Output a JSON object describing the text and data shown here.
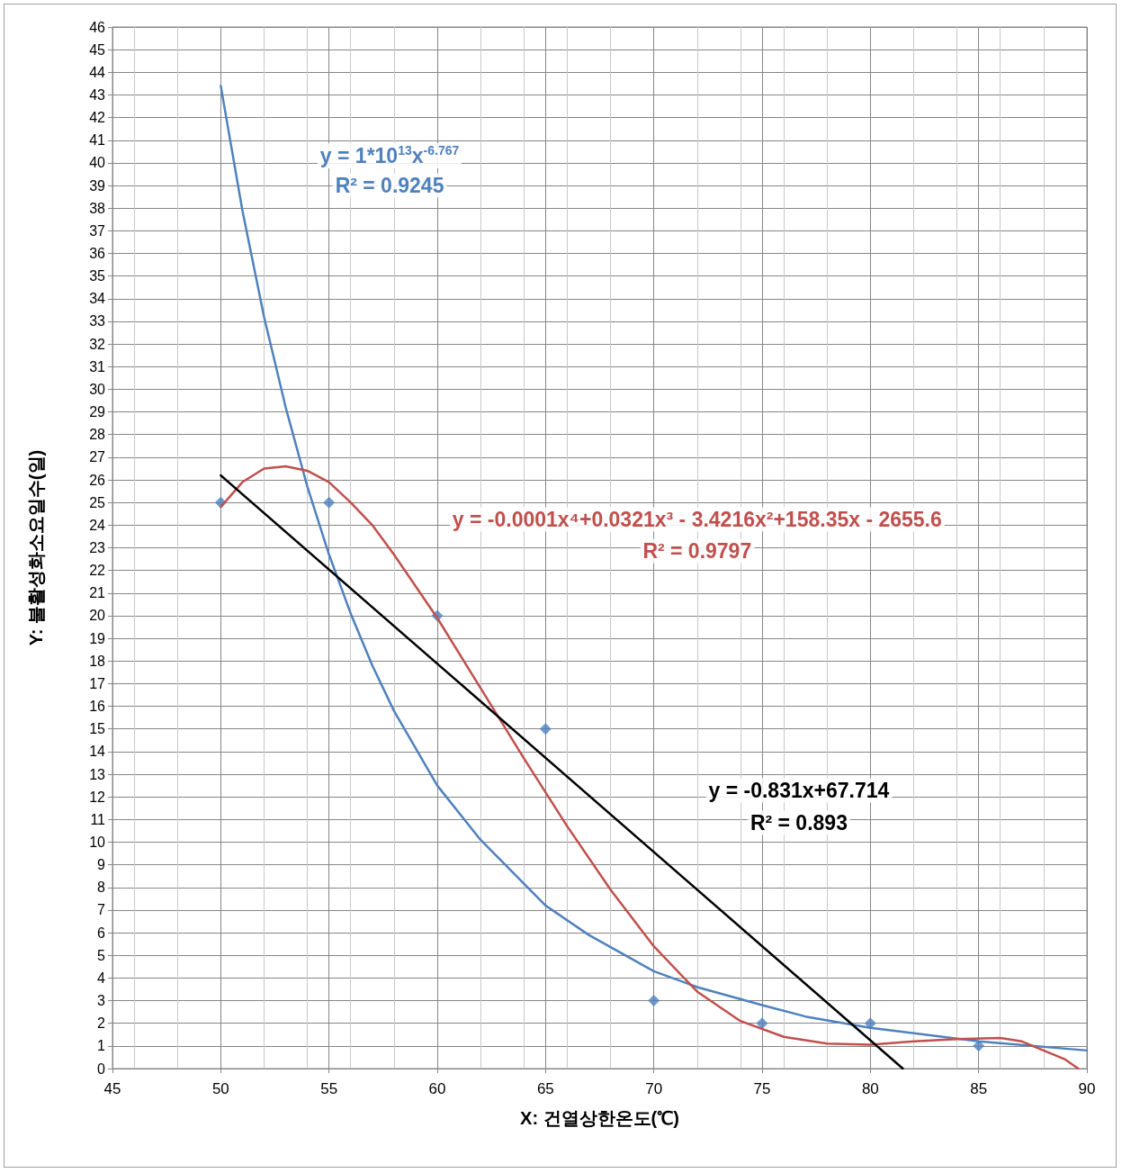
{
  "chart_data": {
    "type": "scatter",
    "xlabel": "X: 건열상한온도(℃)",
    "ylabel": "Y: 불활성화소요일수(일)",
    "xlim": [
      45,
      90
    ],
    "xticks": [
      45,
      50,
      55,
      60,
      65,
      70,
      75,
      80,
      85,
      90
    ],
    "ylim": [
      0,
      46
    ],
    "yticks": [
      0,
      1,
      2,
      3,
      4,
      5,
      6,
      7,
      8,
      9,
      10,
      11,
      12,
      13,
      14,
      15,
      16,
      17,
      18,
      19,
      20,
      21,
      22,
      23,
      24,
      25,
      26,
      27,
      28,
      29,
      30,
      31,
      32,
      33,
      34,
      35,
      36,
      37,
      38,
      39,
      40,
      41,
      42,
      43,
      44,
      45,
      46
    ],
    "grid": true,
    "marker": "diamond",
    "series": [
      {
        "color": "#4f81bd",
        "x": [
          50,
          55,
          60,
          65,
          70,
          75,
          80,
          85
        ],
        "values": [
          25,
          25,
          20,
          15,
          3,
          2,
          2,
          1
        ]
      },
      {
        "type": "line",
        "marker": "none",
        "color": "#4f81bd",
        "x": [
          50,
          51,
          52,
          53,
          54,
          55,
          56,
          57,
          58,
          60,
          62,
          65,
          67,
          70,
          72,
          75,
          77,
          80,
          85,
          90
        ],
        "values": [
          43.4,
          37.9,
          33.2,
          29.2,
          25.7,
          22.7,
          20.1,
          17.8,
          15.8,
          12.5,
          10.1,
          7.2,
          5.9,
          4.3,
          3.6,
          2.8,
          2.3,
          1.8,
          1.2,
          0.8
        ]
      },
      {
        "type": "line",
        "marker": "none",
        "color": "#c0504d",
        "x": [
          50,
          51,
          52,
          53,
          54,
          55,
          56,
          57,
          58,
          59,
          60,
          62,
          64,
          65,
          66,
          68,
          70,
          72,
          74,
          76,
          78,
          80,
          82,
          84,
          86,
          87,
          88,
          89,
          89.6
        ],
        "values": [
          24.8,
          25.9,
          26.5,
          26.6,
          26.4,
          25.9,
          25.0,
          24.0,
          22.7,
          21.3,
          19.9,
          16.8,
          13.7,
          12.2,
          10.7,
          7.9,
          5.4,
          3.4,
          2.1,
          1.4,
          1.1,
          1.05,
          1.2,
          1.3,
          1.35,
          1.2,
          0.8,
          0.4,
          0
        ]
      },
      {
        "type": "line",
        "marker": "none",
        "color": "#000000",
        "x": [
          50,
          81.5
        ],
        "values": [
          26.2,
          0
        ]
      }
    ],
    "annotations": [
      "y = 1*10$^{13}$x$^{-6.767}$",
      "R² = 0.9245",
      "y = -0.0001x⁴+0.0321x³ - 3.4216x²+158.35x - 2655.6",
      "R² = 0.9797",
      "y = -0.831x+67.714",
      "R² = 0.893"
    ]
  }
}
